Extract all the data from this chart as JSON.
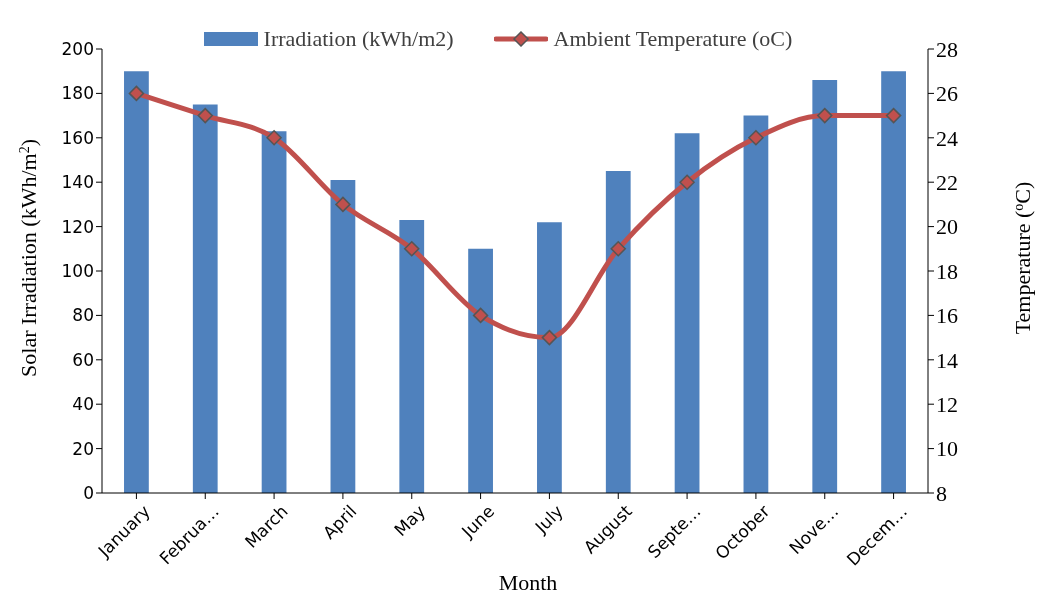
{
  "chart_data": {
    "type": "bar",
    "xlabel": "Month",
    "ylabel": "Solar Irradiation (kWh/m$^{2}$)",
    "y2label": "Temperature ($^{o}$C)",
    "categories": [
      "January",
      "Februa…",
      "March",
      "April",
      "May",
      "June",
      "July",
      "August",
      "Septe…",
      "October",
      "Nove…",
      "Decem…"
    ],
    "series": [
      {
        "name": "Irradiation (kWh/m2)",
        "color": "#4f81bd",
        "values": [
          190,
          175,
          163,
          141,
          123,
          110,
          122,
          145,
          162,
          170,
          186,
          190
        ]
      },
      {
        "name": "Ambient Temperature (oC)",
        "type": "line",
        "axis": "y2",
        "color": "#c0504d",
        "marker": "diamond",
        "values": [
          26,
          25,
          24,
          21,
          19,
          16,
          15,
          19,
          22,
          24,
          25,
          25
        ]
      }
    ],
    "ylim": [
      0,
      200
    ],
    "yticks": [
      0,
      20,
      40,
      60,
      80,
      100,
      120,
      140,
      160,
      180,
      200
    ],
    "y2lim": [
      8,
      28
    ],
    "y2ticks": [
      8,
      10,
      12,
      14,
      16,
      18,
      20,
      22,
      24,
      26,
      28
    ],
    "grid": false,
    "legend": "top"
  }
}
